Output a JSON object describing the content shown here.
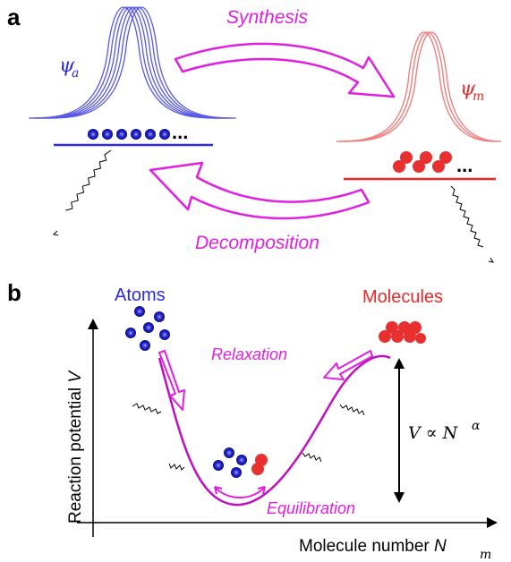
{
  "panel_a": {
    "label": "a",
    "synthesis_label": "Synthesis",
    "decomposition_label": "Decomposition",
    "psi_atom": "ψ",
    "psi_atom_sub": "a",
    "psi_molecule": "ψ",
    "psi_molecule_sub": "m",
    "ellipsis": "...",
    "colors": {
      "atom": "#2a2ae0",
      "molecule": "#e82828",
      "arrow": "#e020e0"
    }
  },
  "panel_b": {
    "label": "b",
    "atoms_label": "Atoms",
    "molecules_label": "Molecules",
    "relaxation_label": "Relaxation",
    "equilibration_label": "Equilibration",
    "y_axis_label": "Reaction potential",
    "y_axis_symbol": "V",
    "x_axis_label": "Molecule number",
    "x_axis_symbol": "N",
    "x_axis_sub": "m",
    "formula_left": "V ∝ N",
    "formula_exp": "α"
  }
}
